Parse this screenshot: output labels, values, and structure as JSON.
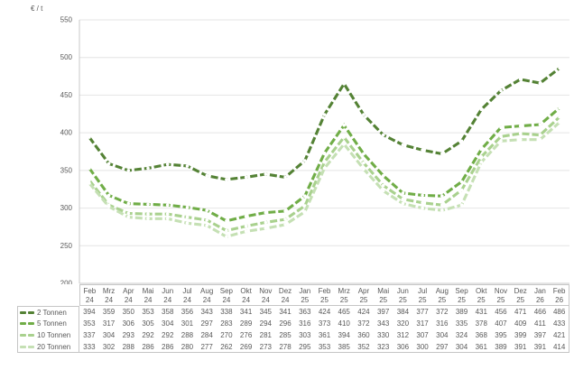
{
  "chart": {
    "y_axis_title": "€ / t"
  },
  "style": {
    "text_color": "#595959",
    "grid_color": "#e4e4e4",
    "axis_color": "#c9c9c9",
    "table_border_color": "#c6c6c6",
    "background": "#ffffff",
    "marker_color": "#ffffff"
  },
  "chart_data": {
    "type": "line",
    "title": "",
    "xlabel": "",
    "ylabel": "€ / t",
    "ylim": [
      200,
      550
    ],
    "y_tick_step": 50,
    "y_ticks": [
      550,
      500,
      450,
      400,
      350,
      300,
      250,
      200
    ],
    "grid": true,
    "line_style": "dashed",
    "legend_position": "left-of-data-table",
    "categories": [
      "Feb 24",
      "Mrz 24",
      "Apr 24",
      "Mai 24",
      "Jun 24",
      "Jul 24",
      "Aug 24",
      "Sep 24",
      "Okt 24",
      "Nov 24",
      "Dez 24",
      "Jan 25",
      "Feb 25",
      "Mrz 25",
      "Apr 25",
      "Mai 25",
      "Jun 25",
      "Jul 25",
      "Aug 25",
      "Sep 25",
      "Okt 25",
      "Nov 25",
      "Dez 25",
      "Jan 26",
      "Feb 26"
    ],
    "series": [
      {
        "name": "2 Tonnen",
        "color": "#548235",
        "values": [
          394,
          359,
          350,
          353,
          358,
          356,
          343,
          338,
          341,
          345,
          341,
          363,
          424,
          465,
          424,
          397,
          384,
          377,
          372,
          389,
          431,
          456,
          471,
          466,
          486
        ]
      },
      {
        "name": "5 Tonnen",
        "color": "#70ad47",
        "values": [
          353,
          317,
          306,
          305,
          304,
          301,
          297,
          283,
          289,
          294,
          296,
          316,
          373,
          410,
          372,
          343,
          320,
          317,
          316,
          335,
          378,
          407,
          409,
          411,
          433
        ]
      },
      {
        "name": "10 Tonnen",
        "color": "#a9d18e",
        "values": [
          337,
          304,
          293,
          292,
          292,
          288,
          284,
          270,
          276,
          281,
          285,
          303,
          361,
          394,
          360,
          330,
          312,
          307,
          304,
          324,
          368,
          395,
          399,
          397,
          421
        ]
      },
      {
        "name": "20 Tonnen",
        "color": "#c5e0b4",
        "values": [
          333,
          302,
          288,
          286,
          286,
          280,
          277,
          262,
          269,
          273,
          278,
          295,
          353,
          385,
          352,
          323,
          306,
          300,
          297,
          304,
          361,
          389,
          391,
          391,
          414
        ]
      }
    ]
  }
}
